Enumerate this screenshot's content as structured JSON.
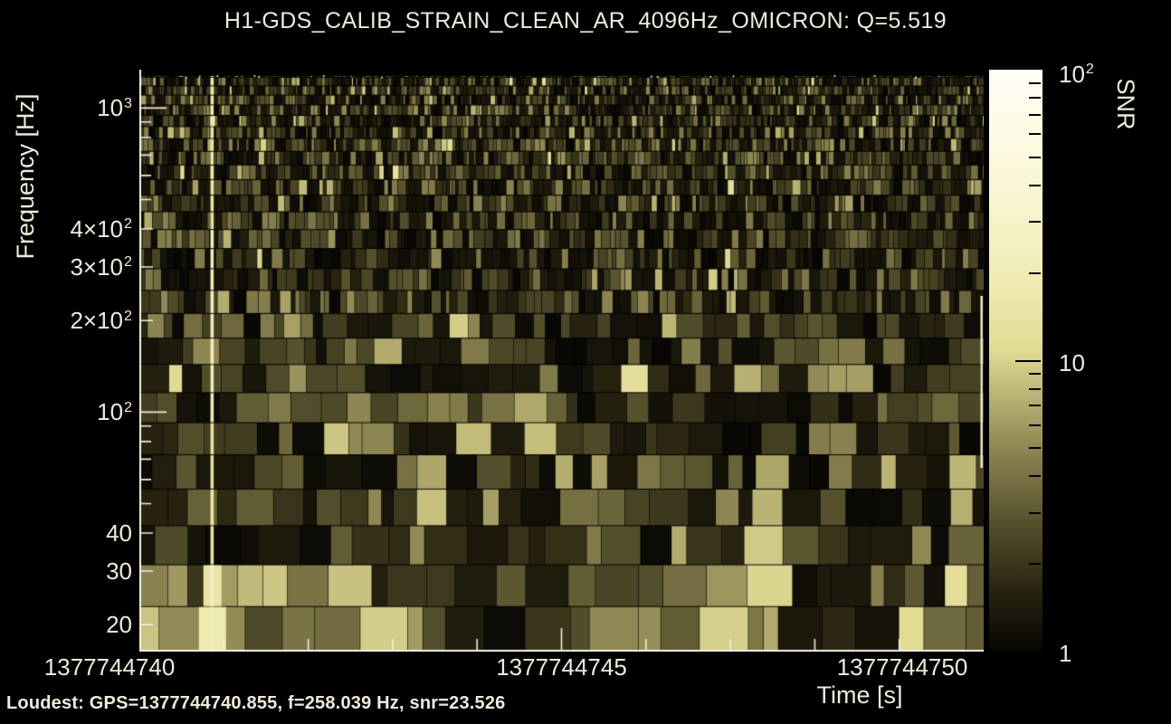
{
  "title": "H1-GDS_CALIB_STRAIN_CLEAN_AR_4096Hz_OMICRON: Q=5.519",
  "footer": {
    "loudest_label": "Loudest: GPS=1377744740.855, f=258.039 Hz, snr=23.526"
  },
  "chart_data": {
    "type": "heatmap",
    "title": "H1-GDS_CALIB_STRAIN_CLEAN_AR_4096Hz_OMICRON: Q=5.519",
    "xlabel": "Time [s]",
    "ylabel": "Frequency [Hz]",
    "colorbar_label": "SNR",
    "x_range_gps": [
      1377744740,
      1377744750
    ],
    "y_range_hz": [
      16.3,
      1337
    ],
    "y_scale": "log",
    "color_range_snr": [
      1,
      100
    ],
    "color_scale": "log",
    "q": 5.519,
    "loudest_event": {
      "gps": 1377744740.855,
      "frequency_hz": 258.039,
      "snr": 23.526
    },
    "x_ticks": [
      {
        "gps": 1377744740,
        "label": "1377744740"
      },
      {
        "gps": 1377744745,
        "label": "1377744745"
      },
      {
        "gps": 1377744750,
        "label": "1377744750"
      }
    ],
    "x_minor_tick_step_s": 1,
    "y_ticks": [
      {
        "hz": 1000,
        "text": "10",
        "sup": "3"
      },
      {
        "hz": 400,
        "text": "4×10",
        "sup": "2"
      },
      {
        "hz": 300,
        "text": "3×10",
        "sup": "2"
      },
      {
        "hz": 200,
        "text": "2×10",
        "sup": "2"
      },
      {
        "hz": 100,
        "text": "10",
        "sup": "2"
      },
      {
        "hz": 40,
        "text": "40",
        "sup": ""
      },
      {
        "hz": 30,
        "text": "30",
        "sup": ""
      },
      {
        "hz": 20,
        "text": "20",
        "sup": ""
      }
    ],
    "colorbar_ticks": [
      {
        "snr": 100,
        "text": "10",
        "sup": "2"
      },
      {
        "snr": 10,
        "text": "10",
        "sup": ""
      },
      {
        "snr": 1,
        "text": "1",
        "sup": ""
      }
    ],
    "colors": {
      "background": "#000000",
      "text": "#efeadc",
      "axis": "#f2eee0",
      "colormap_stops": [
        [
          0.0,
          "#070604"
        ],
        [
          0.1,
          "#26220f"
        ],
        [
          0.22,
          "#55502c"
        ],
        [
          0.34,
          "#8a8250"
        ],
        [
          0.45,
          "#c0b878"
        ],
        [
          0.52,
          "#e2dc96"
        ],
        [
          0.62,
          "#eee9ae"
        ],
        [
          0.75,
          "#f7f3cc"
        ],
        [
          0.88,
          "#fcfae2"
        ],
        [
          1.0,
          "#fffef4"
        ]
      ]
    }
  }
}
